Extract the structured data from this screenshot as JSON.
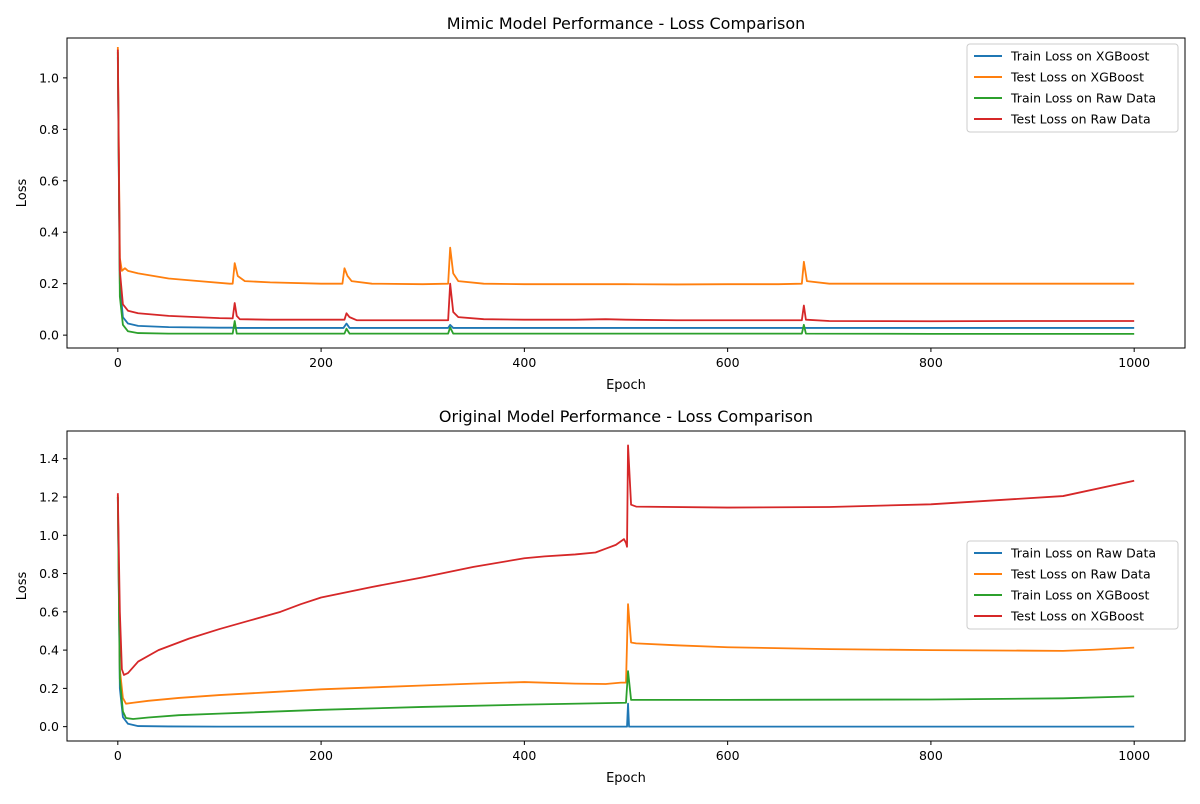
{
  "chart_data": [
    {
      "type": "line",
      "title": "Mimic Model Performance - Loss Comparison",
      "xlabel": "Epoch",
      "ylabel": "Loss",
      "xlim": [
        -50,
        1050
      ],
      "ylim": [
        -0.05,
        1.155
      ],
      "xticks": [
        0,
        200,
        400,
        600,
        800,
        1000
      ],
      "xtick_labels": [
        "0",
        "200",
        "400",
        "600",
        "800",
        "1000"
      ],
      "yticks": [
        0.0,
        0.2,
        0.4,
        0.6,
        0.8,
        1.0
      ],
      "ytick_labels": [
        "0.0",
        "0.2",
        "0.4",
        "0.6",
        "0.8",
        "1.0"
      ],
      "grid": false,
      "legend_position": "top-right",
      "series": [
        {
          "name": "Train Loss on XGBoost",
          "color": "#1f77b4",
          "points": [
            [
              0,
              1.08
            ],
            [
              2,
              0.2
            ],
            [
              5,
              0.07
            ],
            [
              10,
              0.045
            ],
            [
              20,
              0.036
            ],
            [
              50,
              0.031
            ],
            [
              100,
              0.029
            ],
            [
              113,
              0.029
            ],
            [
              115,
              0.028
            ],
            [
              200,
              0.028
            ],
            [
              222,
              0.028
            ],
            [
              225,
              0.045
            ],
            [
              228,
              0.028
            ],
            [
              300,
              0.028
            ],
            [
              325,
              0.028
            ],
            [
              327,
              0.04
            ],
            [
              330,
              0.028
            ],
            [
              400,
              0.028
            ],
            [
              500,
              0.028
            ],
            [
              600,
              0.028
            ],
            [
              673,
              0.028
            ],
            [
              675,
              0.028
            ],
            [
              800,
              0.028
            ],
            [
              1000,
              0.028
            ]
          ]
        },
        {
          "name": "Test Loss on XGBoost",
          "color": "#ff7f0e",
          "points": [
            [
              0,
              1.12
            ],
            [
              2,
              0.3
            ],
            [
              4,
              0.25
            ],
            [
              7,
              0.26
            ],
            [
              10,
              0.25
            ],
            [
              20,
              0.24
            ],
            [
              50,
              0.22
            ],
            [
              80,
              0.21
            ],
            [
              110,
              0.2
            ],
            [
              113,
              0.2
            ],
            [
              115,
              0.28
            ],
            [
              118,
              0.23
            ],
            [
              125,
              0.21
            ],
            [
              150,
              0.205
            ],
            [
              200,
              0.2
            ],
            [
              221,
              0.2
            ],
            [
              223,
              0.26
            ],
            [
              226,
              0.23
            ],
            [
              230,
              0.21
            ],
            [
              250,
              0.2
            ],
            [
              300,
              0.198
            ],
            [
              325,
              0.2
            ],
            [
              327,
              0.34
            ],
            [
              330,
              0.24
            ],
            [
              335,
              0.21
            ],
            [
              360,
              0.2
            ],
            [
              400,
              0.198
            ],
            [
              450,
              0.198
            ],
            [
              500,
              0.198
            ],
            [
              550,
              0.197
            ],
            [
              600,
              0.198
            ],
            [
              650,
              0.198
            ],
            [
              673,
              0.2
            ],
            [
              675,
              0.285
            ],
            [
              678,
              0.21
            ],
            [
              700,
              0.2
            ],
            [
              800,
              0.2
            ],
            [
              900,
              0.2
            ],
            [
              1000,
              0.2
            ]
          ]
        },
        {
          "name": "Train Loss on Raw Data",
          "color": "#2ca02c",
          "points": [
            [
              0,
              1.1
            ],
            [
              2,
              0.15
            ],
            [
              5,
              0.04
            ],
            [
              10,
              0.015
            ],
            [
              20,
              0.008
            ],
            [
              50,
              0.006
            ],
            [
              113,
              0.006
            ],
            [
              115,
              0.055
            ],
            [
              117,
              0.006
            ],
            [
              223,
              0.006
            ],
            [
              225,
              0.025
            ],
            [
              228,
              0.006
            ],
            [
              325,
              0.006
            ],
            [
              327,
              0.03
            ],
            [
              330,
              0.006
            ],
            [
              673,
              0.006
            ],
            [
              675,
              0.04
            ],
            [
              677,
              0.006
            ],
            [
              800,
              0.005
            ],
            [
              1000,
              0.005
            ]
          ]
        },
        {
          "name": "Test Loss on Raw Data",
          "color": "#d62728",
          "points": [
            [
              0,
              1.11
            ],
            [
              2,
              0.25
            ],
            [
              5,
              0.12
            ],
            [
              10,
              0.095
            ],
            [
              20,
              0.085
            ],
            [
              50,
              0.075
            ],
            [
              100,
              0.066
            ],
            [
              113,
              0.065
            ],
            [
              115,
              0.125
            ],
            [
              117,
              0.075
            ],
            [
              120,
              0.062
            ],
            [
              150,
              0.06
            ],
            [
              200,
              0.06
            ],
            [
              223,
              0.06
            ],
            [
              225,
              0.085
            ],
            [
              228,
              0.07
            ],
            [
              235,
              0.058
            ],
            [
              300,
              0.058
            ],
            [
              325,
              0.058
            ],
            [
              327,
              0.2
            ],
            [
              330,
              0.09
            ],
            [
              335,
              0.07
            ],
            [
              360,
              0.062
            ],
            [
              400,
              0.06
            ],
            [
              450,
              0.06
            ],
            [
              480,
              0.062
            ],
            [
              500,
              0.06
            ],
            [
              550,
              0.058
            ],
            [
              600,
              0.058
            ],
            [
              650,
              0.058
            ],
            [
              673,
              0.058
            ],
            [
              675,
              0.115
            ],
            [
              677,
              0.06
            ],
            [
              700,
              0.055
            ],
            [
              800,
              0.054
            ],
            [
              900,
              0.055
            ],
            [
              1000,
              0.055
            ]
          ]
        }
      ]
    },
    {
      "type": "line",
      "title": "Original Model Performance - Loss Comparison",
      "xlabel": "Epoch",
      "ylabel": "Loss",
      "xlim": [
        -50,
        1050
      ],
      "ylim": [
        -0.075,
        1.545
      ],
      "xticks": [
        0,
        200,
        400,
        600,
        800,
        1000
      ],
      "xtick_labels": [
        "0",
        "200",
        "400",
        "600",
        "800",
        "1000"
      ],
      "yticks": [
        0.0,
        0.2,
        0.4,
        0.6,
        0.8,
        1.0,
        1.2,
        1.4
      ],
      "ytick_labels": [
        "0.0",
        "0.2",
        "0.4",
        "0.6",
        "0.8",
        "1.0",
        "1.2",
        "1.4"
      ],
      "grid": false,
      "legend_position": "center-right",
      "series": [
        {
          "name": "Train Loss on Raw Data",
          "color": "#1f77b4",
          "points": [
            [
              0,
              1.2
            ],
            [
              2,
              0.2
            ],
            [
              5,
              0.05
            ],
            [
              10,
              0.015
            ],
            [
              20,
              0.003
            ],
            [
              50,
              0.001
            ],
            [
              100,
              0.0
            ],
            [
              500,
              0.0
            ],
            [
              501,
              0.0
            ],
            [
              502,
              0.12
            ],
            [
              503,
              0.0
            ],
            [
              600,
              0.0
            ],
            [
              800,
              0.0
            ],
            [
              1000,
              0.0
            ]
          ]
        },
        {
          "name": "Test Loss on Raw Data",
          "color": "#ff7f0e",
          "points": [
            [
              0,
              1.21
            ],
            [
              2,
              0.3
            ],
            [
              5,
              0.15
            ],
            [
              8,
              0.12
            ],
            [
              15,
              0.125
            ],
            [
              30,
              0.135
            ],
            [
              60,
              0.15
            ],
            [
              100,
              0.165
            ],
            [
              150,
              0.18
            ],
            [
              200,
              0.195
            ],
            [
              250,
              0.205
            ],
            [
              300,
              0.215
            ],
            [
              350,
              0.225
            ],
            [
              400,
              0.233
            ],
            [
              450,
              0.225
            ],
            [
              480,
              0.223
            ],
            [
              495,
              0.23
            ],
            [
              500,
              0.23
            ],
            [
              502,
              0.64
            ],
            [
              505,
              0.44
            ],
            [
              510,
              0.435
            ],
            [
              550,
              0.425
            ],
            [
              600,
              0.415
            ],
            [
              700,
              0.405
            ],
            [
              800,
              0.4
            ],
            [
              900,
              0.397
            ],
            [
              930,
              0.396
            ],
            [
              960,
              0.402
            ],
            [
              1000,
              0.413
            ]
          ]
        },
        {
          "name": "Train Loss on XGBoost",
          "color": "#2ca02c",
          "points": [
            [
              0,
              1.2
            ],
            [
              2,
              0.25
            ],
            [
              5,
              0.08
            ],
            [
              8,
              0.045
            ],
            [
              15,
              0.04
            ],
            [
              30,
              0.048
            ],
            [
              60,
              0.06
            ],
            [
              100,
              0.068
            ],
            [
              200,
              0.088
            ],
            [
              300,
              0.103
            ],
            [
              400,
              0.115
            ],
            [
              500,
              0.125
            ],
            [
              502,
              0.29
            ],
            [
              505,
              0.14
            ],
            [
              600,
              0.14
            ],
            [
              800,
              0.142
            ],
            [
              930,
              0.148
            ],
            [
              1000,
              0.158
            ]
          ]
        },
        {
          "name": "Test Loss on XGBoost",
          "color": "#d62728",
          "points": [
            [
              0,
              1.22
            ],
            [
              2,
              0.6
            ],
            [
              4,
              0.3
            ],
            [
              6,
              0.27
            ],
            [
              10,
              0.28
            ],
            [
              20,
              0.34
            ],
            [
              40,
              0.4
            ],
            [
              70,
              0.46
            ],
            [
              100,
              0.51
            ],
            [
              130,
              0.555
            ],
            [
              160,
              0.6
            ],
            [
              180,
              0.64
            ],
            [
              200,
              0.675
            ],
            [
              250,
              0.73
            ],
            [
              300,
              0.78
            ],
            [
              350,
              0.835
            ],
            [
              400,
              0.88
            ],
            [
              420,
              0.89
            ],
            [
              450,
              0.9
            ],
            [
              470,
              0.91
            ],
            [
              480,
              0.93
            ],
            [
              490,
              0.95
            ],
            [
              498,
              0.98
            ],
            [
              500,
              0.96
            ],
            [
              501,
              0.94
            ],
            [
              502,
              1.47
            ],
            [
              505,
              1.16
            ],
            [
              510,
              1.15
            ],
            [
              600,
              1.145
            ],
            [
              700,
              1.148
            ],
            [
              800,
              1.162
            ],
            [
              930,
              1.205
            ],
            [
              1000,
              1.285
            ]
          ]
        }
      ]
    }
  ]
}
